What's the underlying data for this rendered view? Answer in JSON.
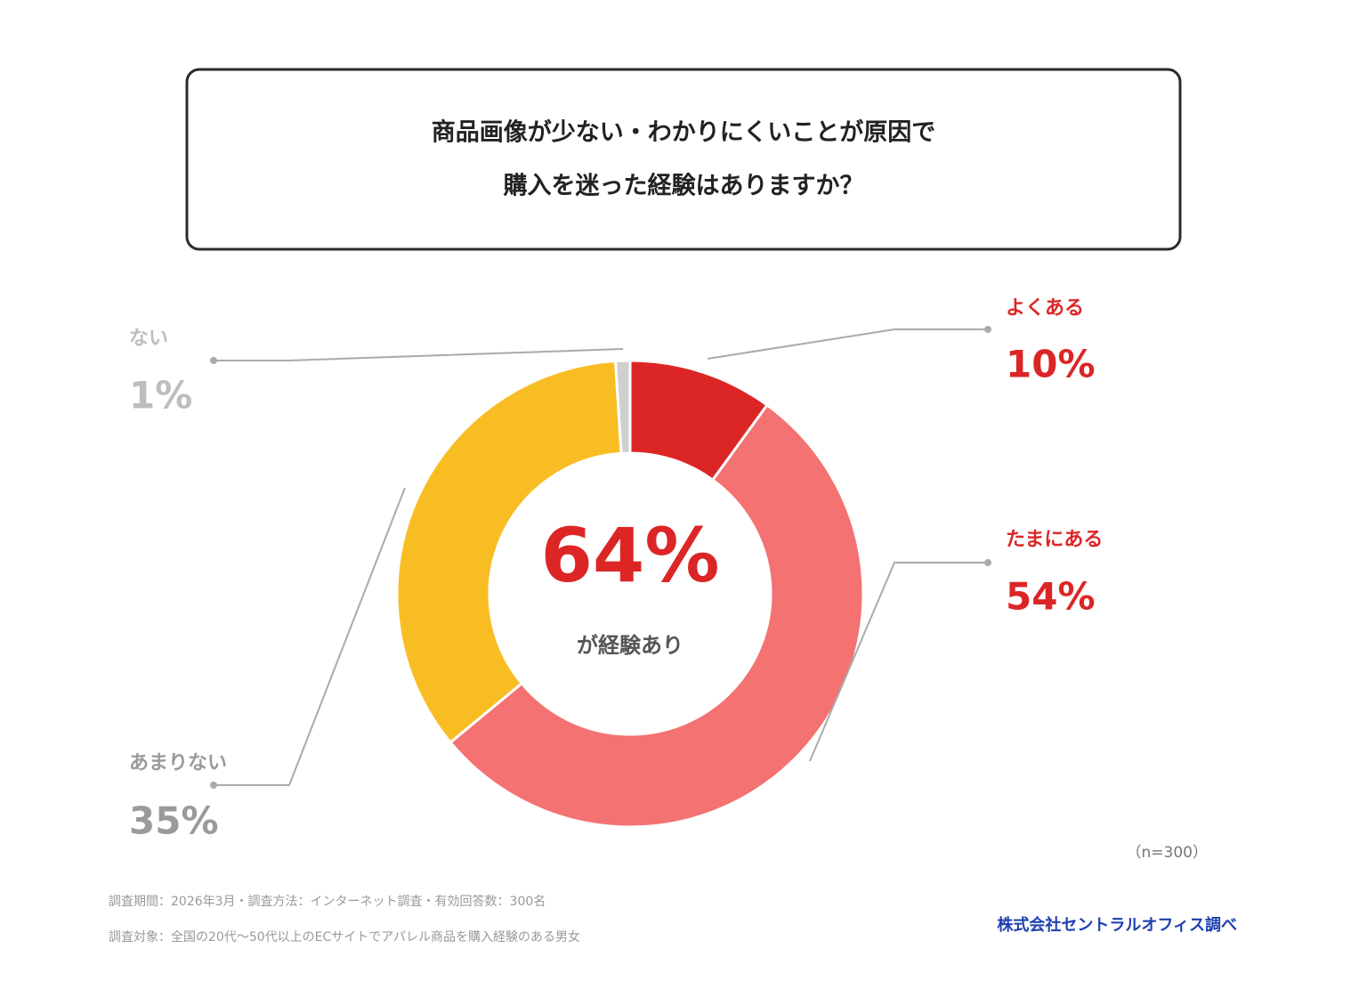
{
  "chart_data": {
    "type": "pie",
    "title_lines": [
      "商品画像が少ない・わかりにくいことが原因で",
      "購入を迷った経験はありますか？"
    ],
    "categories": [
      "よくある",
      "たまにある",
      "あまりない",
      "ない"
    ],
    "values": [
      10,
      54,
      35,
      1
    ],
    "value_labels": [
      "10%",
      "54%",
      "35%",
      "1%"
    ],
    "colors": [
      "#dc2626",
      "#f47272",
      "#f9bd24",
      "#cfcfcf"
    ],
    "label_colors": [
      "#dc2626",
      "#dc2626",
      "#9a9a9a",
      "#bdbdbd"
    ],
    "center_value": "64%",
    "center_caption": "が経験あり",
    "sample_note": "（n=300）",
    "notes": [
      "調査期間：2026年3月・調査方法：インターネット調査・有効回答数：300名",
      "調査対象：全国の20代〜50代以上のECサイトでアパレル商品を購入経験のある男女"
    ],
    "source": "株式会社セントラルオフィス調べ"
  }
}
